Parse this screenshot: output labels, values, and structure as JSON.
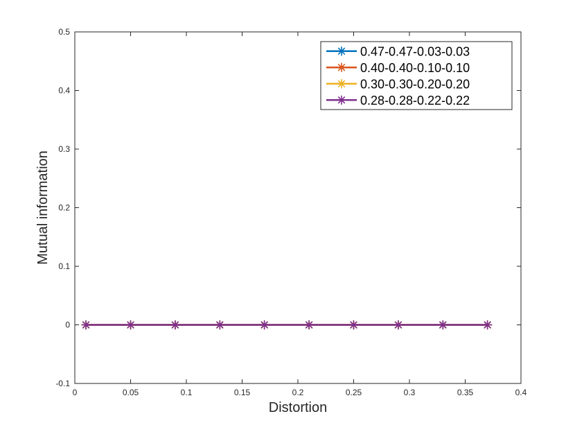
{
  "chart_data": {
    "type": "line",
    "xlabel": "Distortion",
    "ylabel": "Mutual information",
    "xlim": [
      0,
      0.4
    ],
    "ylim": [
      -0.1,
      0.5
    ],
    "xticks": [
      0,
      0.05,
      0.1,
      0.15,
      0.2,
      0.25,
      0.3,
      0.35,
      0.4
    ],
    "xtick_labels": [
      "0",
      "0.05",
      "0.1",
      "0.15",
      "0.2",
      "0.25",
      "0.3",
      "0.35",
      "0.4"
    ],
    "yticks": [
      -0.1,
      0,
      0.1,
      0.2,
      0.3,
      0.4,
      0.5
    ],
    "ytick_labels": [
      "-0.1",
      "0",
      "0.1",
      "0.2",
      "0.3",
      "0.4",
      "0.5"
    ],
    "grid": false,
    "legend_position": "top-right",
    "marker": "asterisk",
    "x": [
      0.01,
      0.05,
      0.09,
      0.13,
      0.17,
      0.21,
      0.25,
      0.29,
      0.33,
      0.37
    ],
    "series": [
      {
        "name": "0.47-0.47-0.03-0.03",
        "color": "#0072BD",
        "values": [
          0,
          0,
          0,
          0,
          0,
          0,
          0,
          0,
          0,
          0
        ]
      },
      {
        "name": "0.40-0.40-0.10-0.10",
        "color": "#D95319",
        "values": [
          0,
          0,
          0,
          0,
          0,
          0,
          0,
          0,
          0,
          0
        ]
      },
      {
        "name": "0.30-0.30-0.20-0.20",
        "color": "#EDB120",
        "values": [
          0,
          0,
          0,
          0,
          0,
          0,
          0,
          0,
          0,
          0
        ]
      },
      {
        "name": "0.28-0.28-0.22-0.22",
        "color": "#7E2F8E",
        "values": [
          0,
          0,
          0,
          0,
          0,
          0,
          0,
          0,
          0,
          0
        ]
      }
    ]
  }
}
